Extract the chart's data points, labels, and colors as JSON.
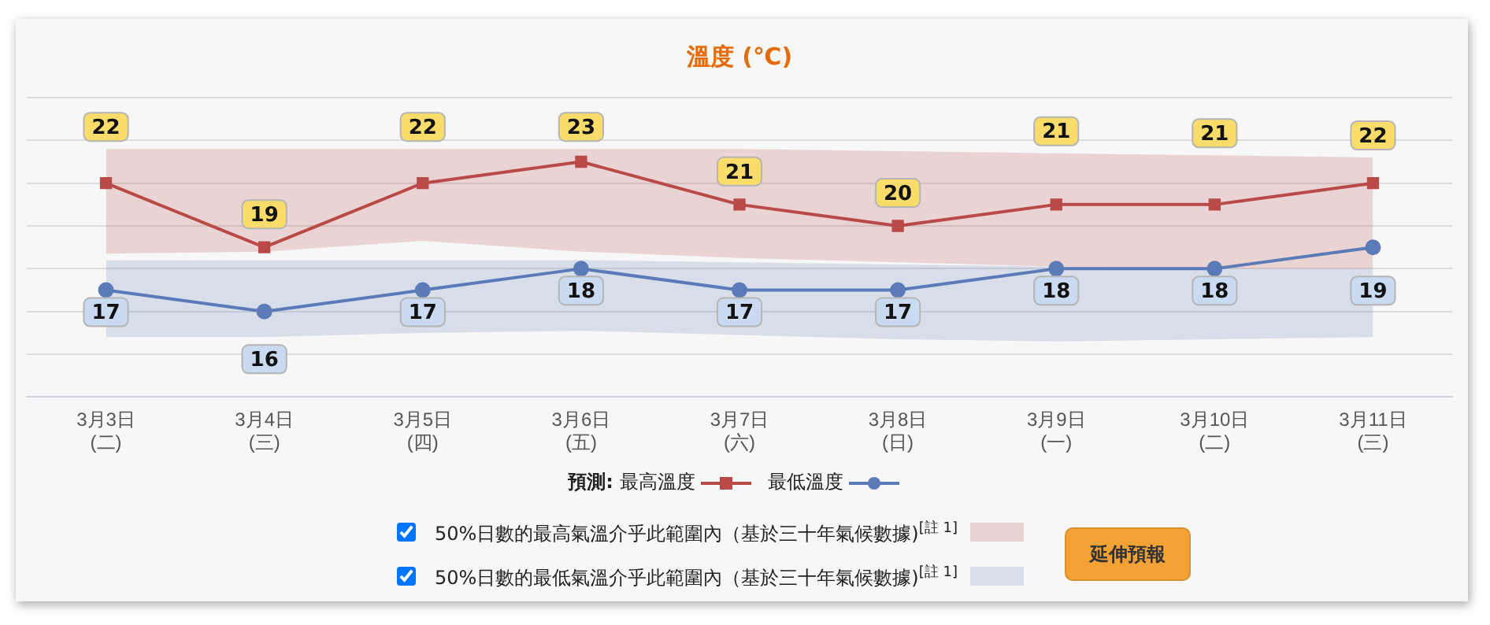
{
  "chart_data": {
    "type": "line",
    "title": "溫度 (℃)",
    "categories": [
      "3月3日\n(二)",
      "3月4日\n(三)",
      "3月5日\n(四)",
      "3月6日\n(五)",
      "3月7日\n(六)",
      "3月8日\n(日)",
      "3月9日\n(一)",
      "3月10日\n(二)",
      "3月11日\n(三)"
    ],
    "series": [
      {
        "name": "最高溫度",
        "color": "#b94a48",
        "marker": "square",
        "values": [
          22,
          19,
          22,
          23,
          21,
          20,
          21,
          21,
          22
        ],
        "lower": [
          18.7,
          18.8,
          19.3,
          18.8,
          18.5,
          18.3,
          18.1,
          18.0,
          18.0
        ],
        "upper": [
          23.6,
          23.6,
          23.6,
          23.6,
          23.6,
          23.5,
          23.4,
          23.3,
          23.2
        ]
      },
      {
        "name": "最低溫度",
        "color": "#5b7bb8",
        "marker": "circle",
        "values": [
          17,
          16,
          17,
          18,
          17,
          17,
          18,
          18,
          19
        ],
        "lower": [
          14.8,
          14.8,
          15.0,
          15.1,
          14.9,
          14.7,
          14.6,
          14.7,
          14.8
        ],
        "upper": [
          18.4,
          18.4,
          18.4,
          18.4,
          18.3,
          18.2,
          18.1,
          18.0,
          18.0
        ]
      }
    ],
    "ylim": [
      12,
      26
    ],
    "yticks": [
      {
        "value": 12,
        "label": null
      },
      {
        "value": 14,
        "label": null
      },
      {
        "value": 16,
        "label": null
      },
      {
        "value": 18,
        "label": null
      },
      {
        "value": 20,
        "label": null
      },
      {
        "value": 22,
        "label": null
      },
      {
        "value": 24,
        "label": null
      },
      {
        "value": 26,
        "label": null
      }
    ],
    "tick_labels": "x",
    "grid": "y",
    "legend": "bottom",
    "legend_title": "預測:",
    "data_labels": true,
    "annotations": [
      "50%日數的最高氣溫介乎此範圍內（基於三十年氣候數據)$^{[註 1]}$",
      "50%日數的最低氣溫介乎此範圍內（基於三十年氣候數據)$^{[註 1]}$",
      "延伸預報"
    ]
  }
}
